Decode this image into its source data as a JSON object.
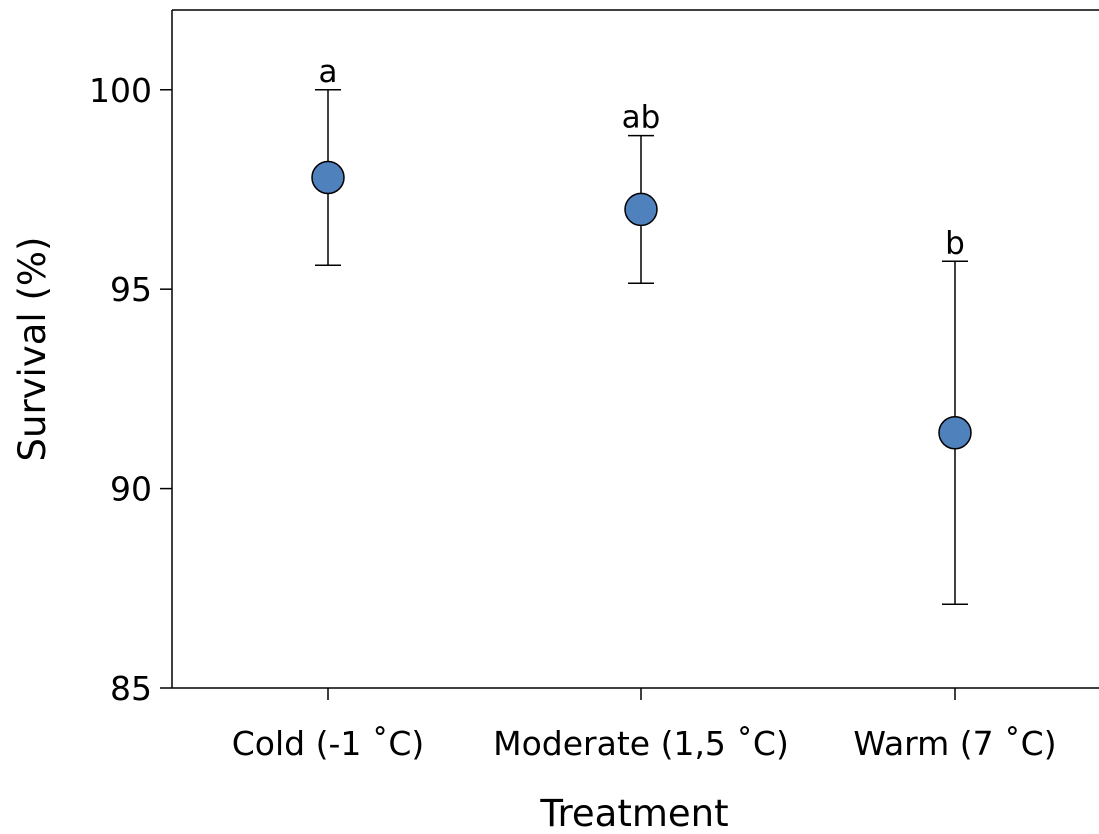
{
  "chart_data": {
    "type": "scatter",
    "title": "",
    "xlabel": "Treatment",
    "ylabel": "Survival (%)",
    "categories": [
      "Cold (-1 ˚C)",
      "Moderate (1,5 ˚C)",
      "Warm (7 ˚C)"
    ],
    "series": [
      {
        "values": [
          97.8,
          97.0,
          91.4
        ],
        "error_low": [
          95.6,
          95.15,
          87.1
        ],
        "error_high": [
          100.0,
          98.85,
          95.7
        ],
        "significance_labels": [
          "a",
          "ab",
          "b"
        ],
        "color": "#4f81bd"
      }
    ],
    "ylim": [
      85,
      102
    ],
    "yticks": [
      85,
      90,
      95,
      100
    ],
    "grid": false,
    "legend": "none"
  }
}
